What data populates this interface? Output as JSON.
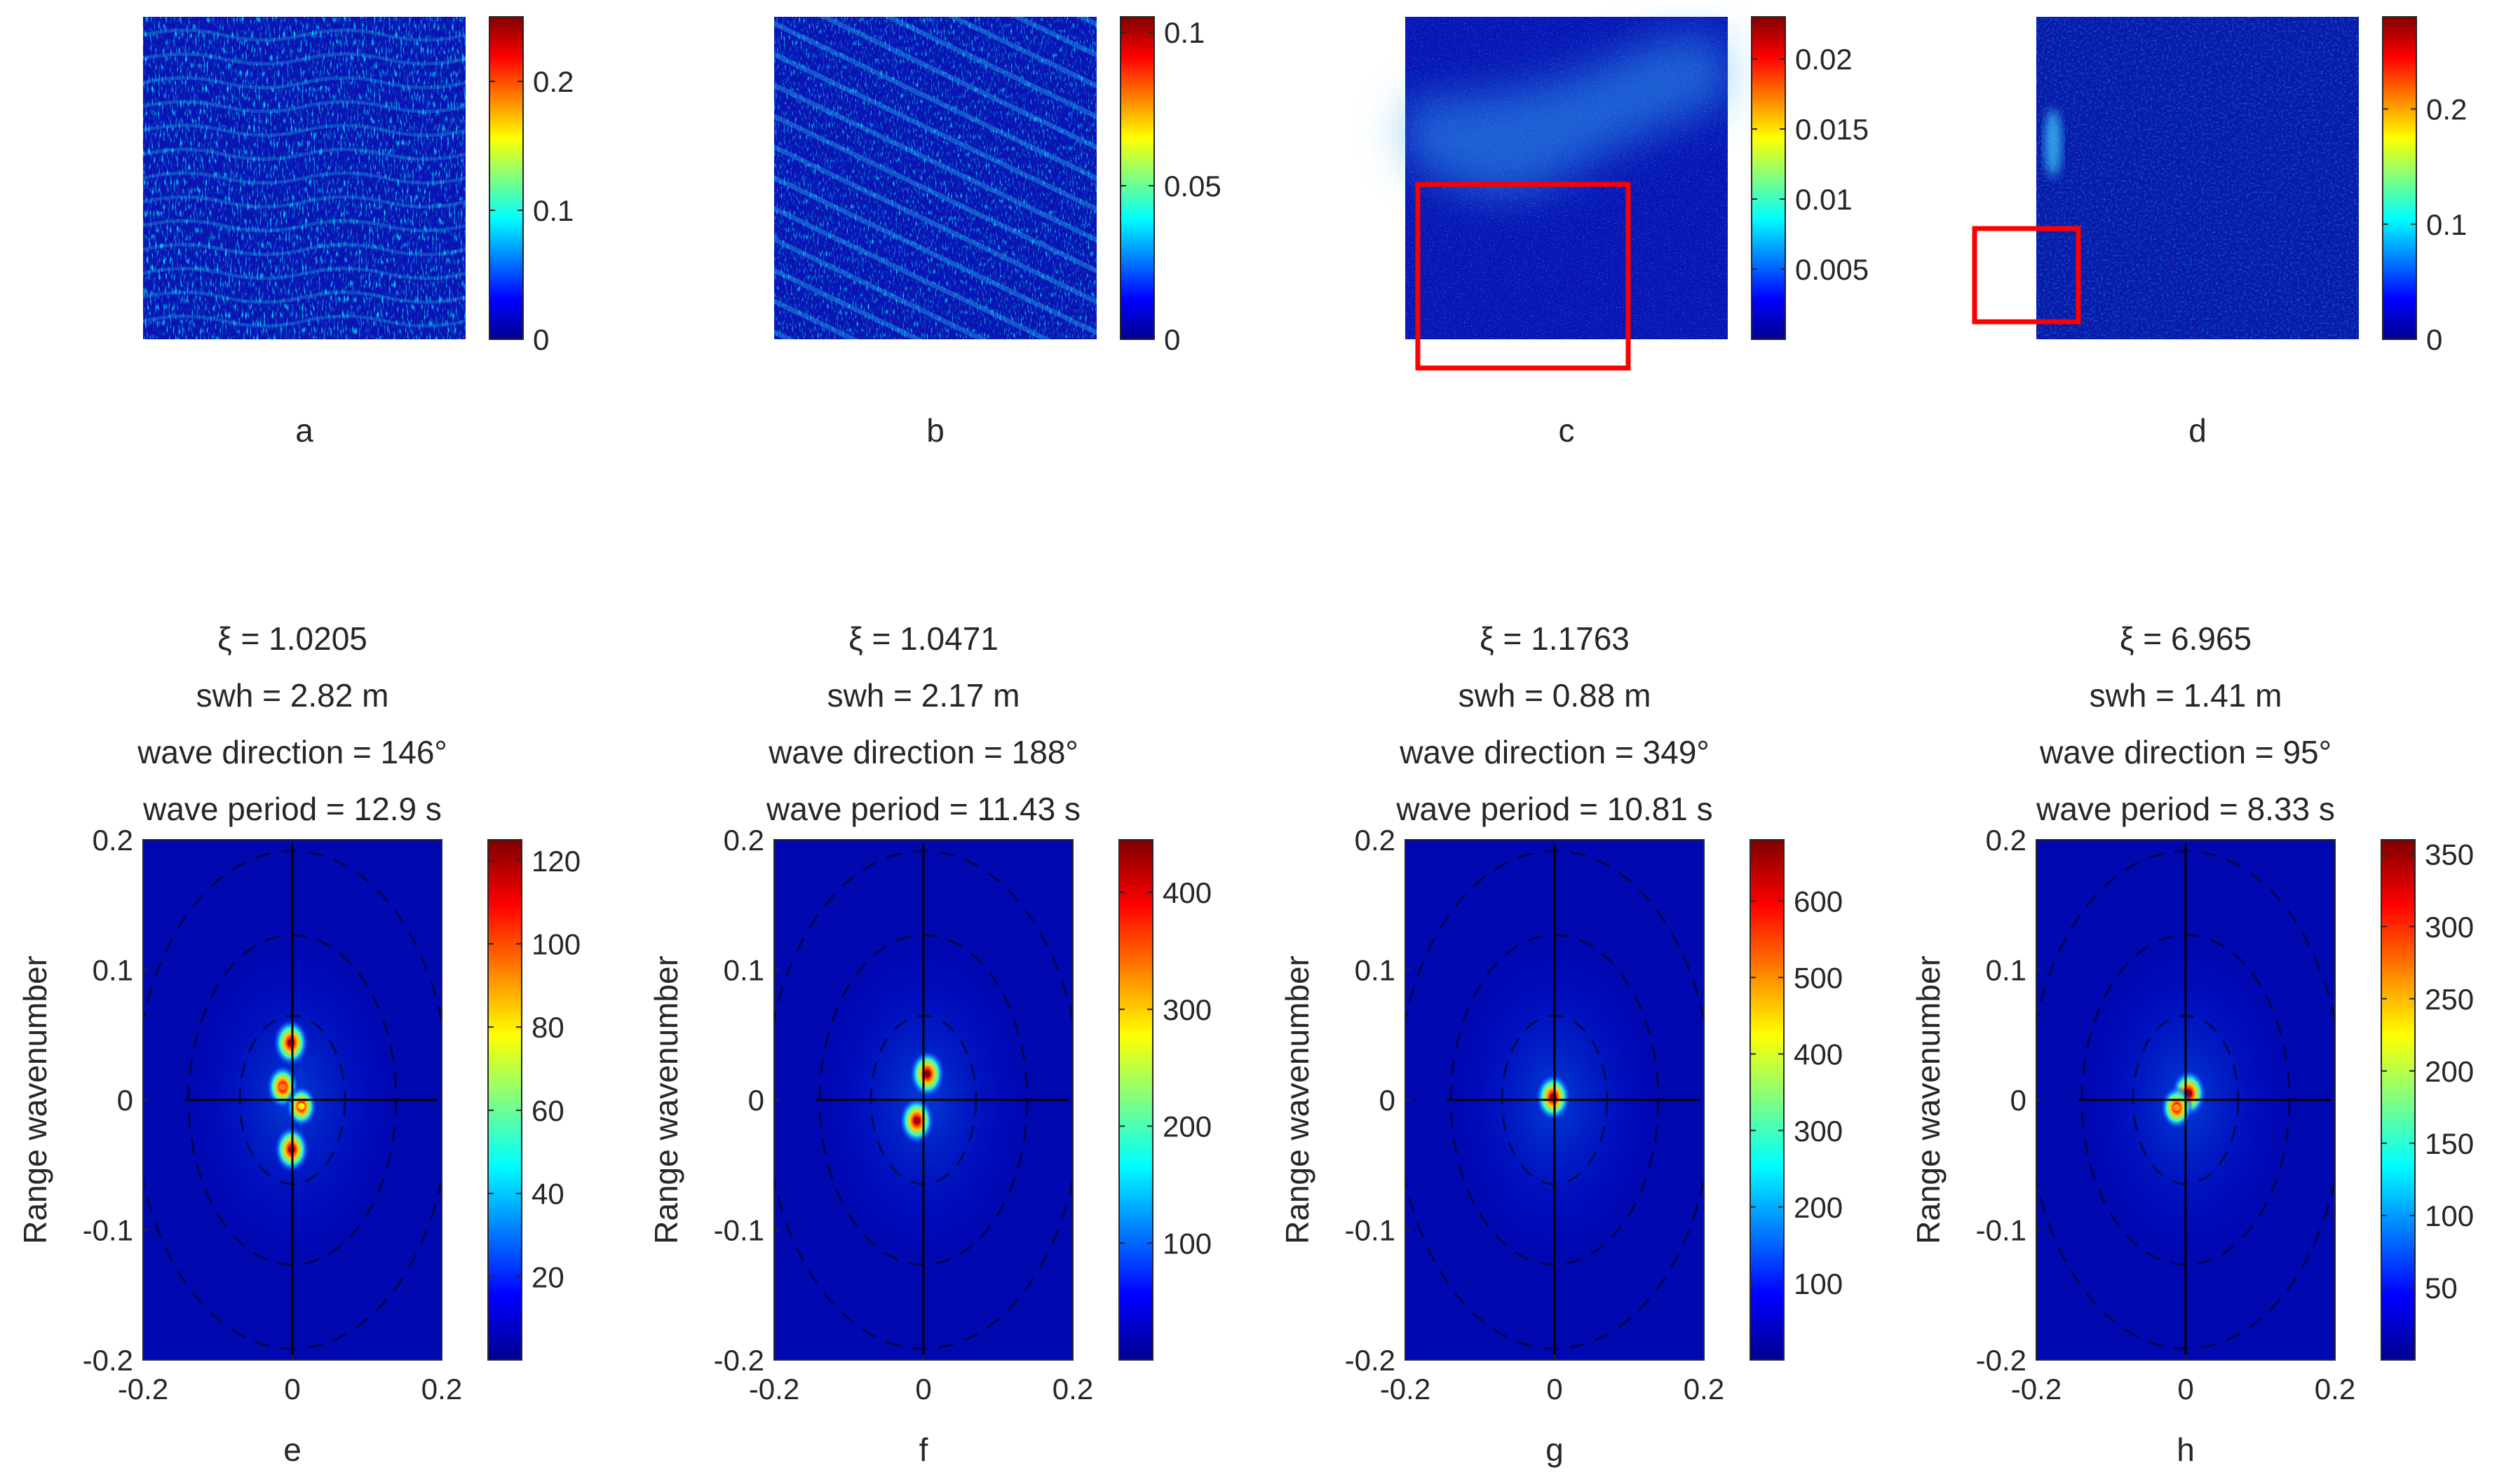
{
  "colormap": "jet",
  "highlight_color": "#ff0000",
  "axis_color": "#262626",
  "chart_data": [
    {
      "id": "a",
      "type": "heatmap",
      "caption": "a",
      "content": "SAR intensity image",
      "colorbar": {
        "range": [
          0,
          0.25
        ],
        "ticks": [
          0,
          0.1,
          0.2
        ],
        "tick_labels": [
          "0",
          "0.1",
          "0.2"
        ]
      },
      "pattern": "wavy",
      "highlight_box": false
    },
    {
      "id": "b",
      "type": "heatmap",
      "caption": "b",
      "content": "SAR intensity image",
      "colorbar": {
        "range": [
          0,
          0.105
        ],
        "ticks": [
          0,
          0.05,
          0.1
        ],
        "tick_labels": [
          "0",
          "0.05",
          "0.1"
        ]
      },
      "pattern": "diagonal",
      "highlight_box": false
    },
    {
      "id": "c",
      "type": "heatmap",
      "caption": "c",
      "content": "SAR intensity image",
      "colorbar": {
        "range": [
          0,
          0.023
        ],
        "ticks": [
          0.005,
          0.01,
          0.015,
          0.02
        ],
        "tick_labels": [
          "0.005",
          "0.01",
          "0.015",
          "0.02"
        ]
      },
      "pattern": "bright-band",
      "highlight_box": true
    },
    {
      "id": "d",
      "type": "heatmap",
      "caption": "d",
      "content": "SAR intensity image",
      "colorbar": {
        "range": [
          0,
          0.28
        ],
        "ticks": [
          0,
          0.1,
          0.2
        ],
        "tick_labels": [
          "0",
          "0.1",
          "0.2"
        ]
      },
      "pattern": "uniform-dark",
      "highlight_box": true
    },
    {
      "id": "e",
      "type": "heatmap",
      "caption": "e",
      "content": "2D wave spectrum",
      "title_lines": [
        "ξ = 1.0205",
        "swh = 2.82 m",
        "wave direction = 146°",
        "wave period = 12.9 s"
      ],
      "xlabel": "",
      "ylabel": "Range wavenumber",
      "xlim": [
        -0.2,
        0.2
      ],
      "ylim": [
        -0.2,
        0.2
      ],
      "x_ticks": [
        -0.2,
        0,
        0.2
      ],
      "x_tick_labels": [
        "-0.2",
        "0",
        "0.2"
      ],
      "y_ticks": [
        -0.2,
        -0.1,
        0,
        0.1,
        0.2
      ],
      "y_tick_labels": [
        "-0.2",
        "-0.1",
        "0",
        "0.1",
        "0.2"
      ],
      "peaks": [
        {
          "kx": -0.002,
          "ky": 0.044,
          "value": 122
        },
        {
          "kx": -0.001,
          "ky": -0.038,
          "value": 118
        },
        {
          "kx": -0.013,
          "ky": 0.01,
          "value": 95
        },
        {
          "kx": 0.012,
          "ky": -0.005,
          "value": 80
        }
      ],
      "colorbar": {
        "range": [
          0,
          125
        ],
        "ticks": [
          20,
          40,
          60,
          80,
          100,
          120
        ],
        "tick_labels": [
          "20",
          "40",
          "60",
          "80",
          "100",
          "120"
        ]
      }
    },
    {
      "id": "f",
      "type": "heatmap",
      "caption": "f",
      "content": "2D wave spectrum",
      "title_lines": [
        "ξ = 1.0471",
        "swh = 2.17 m",
        "wave direction = 188°",
        "wave period = 11.43 s"
      ],
      "xlabel": "",
      "ylabel": "Range wavenumber",
      "xlim": [
        -0.2,
        0.2
      ],
      "ylim": [
        -0.2,
        0.2
      ],
      "x_ticks": [
        -0.2,
        0,
        0.2
      ],
      "x_tick_labels": [
        "-0.2",
        "0",
        "0.2"
      ],
      "y_ticks": [
        -0.2,
        -0.1,
        0,
        0.1,
        0.2
      ],
      "y_tick_labels": [
        "-0.2",
        "-0.1",
        "0",
        "0.1",
        "0.2"
      ],
      "peaks": [
        {
          "kx": 0.005,
          "ky": 0.02,
          "value": 440
        },
        {
          "kx": -0.009,
          "ky": -0.016,
          "value": 430
        }
      ],
      "colorbar": {
        "range": [
          0,
          445
        ],
        "ticks": [
          100,
          200,
          300,
          400
        ],
        "tick_labels": [
          "100",
          "200",
          "300",
          "400"
        ]
      }
    },
    {
      "id": "g",
      "type": "heatmap",
      "caption": "g",
      "content": "2D wave spectrum",
      "title_lines": [
        "ξ = 1.1763",
        "swh = 0.88 m",
        "wave direction = 349°",
        "wave period = 10.81 s"
      ],
      "xlabel": "",
      "ylabel": "Range wavenumber",
      "xlim": [
        -0.2,
        0.2
      ],
      "ylim": [
        -0.2,
        0.2
      ],
      "x_ticks": [
        -0.2,
        0,
        0.2
      ],
      "x_tick_labels": [
        "-0.2",
        "0",
        "0.2"
      ],
      "y_ticks": [
        -0.2,
        -0.1,
        0,
        0.1,
        0.2
      ],
      "y_tick_labels": [
        "-0.2",
        "-0.1",
        "0",
        "0.1",
        "0.2"
      ],
      "peaks": [
        {
          "kx": -0.002,
          "ky": 0.002,
          "value": 670
        }
      ],
      "colorbar": {
        "range": [
          0,
          680
        ],
        "ticks": [
          100,
          200,
          300,
          400,
          500,
          600
        ],
        "tick_labels": [
          "100",
          "200",
          "300",
          "400",
          "500",
          "600"
        ]
      }
    },
    {
      "id": "h",
      "type": "heatmap",
      "caption": "h",
      "content": "2D wave spectrum",
      "title_lines": [
        "ξ = 6.965",
        "swh = 1.41 m",
        "wave direction = 95°",
        "wave period = 8.33 s"
      ],
      "xlabel": "",
      "ylabel": "Range wavenumber",
      "xlim": [
        -0.2,
        0.2
      ],
      "ylim": [
        -0.2,
        0.2
      ],
      "x_ticks": [
        -0.2,
        0,
        0.2
      ],
      "x_tick_labels": [
        "-0.2",
        "0",
        "0.2"
      ],
      "y_ticks": [
        -0.2,
        -0.1,
        0,
        0.1,
        0.2
      ],
      "y_tick_labels": [
        "-0.2",
        "-0.1",
        "0",
        "0.1",
        "0.2"
      ],
      "peaks": [
        {
          "kx": 0.004,
          "ky": 0.005,
          "value": 355
        },
        {
          "kx": -0.012,
          "ky": -0.006,
          "value": 260
        }
      ],
      "colorbar": {
        "range": [
          0,
          360
        ],
        "ticks": [
          50,
          100,
          150,
          200,
          250,
          300,
          350
        ],
        "tick_labels": [
          "50",
          "100",
          "150",
          "200",
          "250",
          "300",
          "350"
        ]
      }
    }
  ]
}
